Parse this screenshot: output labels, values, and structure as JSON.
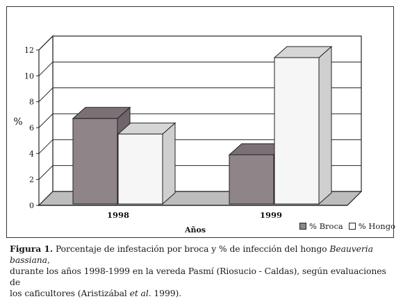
{
  "chart_data": {
    "type": "bar",
    "categories": [
      "1998",
      "1999"
    ],
    "series": [
      {
        "name": "% Broca",
        "values": [
          6.6,
          3.8
        ],
        "color": "#8f8488"
      },
      {
        "name": "% Hongo",
        "values": [
          5.4,
          11.3
        ],
        "color": "#f7f7f7"
      }
    ],
    "ylabel": "%",
    "xlabel": "Años",
    "ylim": [
      0,
      12
    ],
    "yticks": [
      "0",
      "2",
      "4",
      "6",
      "8",
      "10",
      "12"
    ],
    "grid": true,
    "three_d": true,
    "legend_position": "bottom-right"
  },
  "caption": {
    "label": "Figura 1.",
    "line1_text": "Porcentaje de infestación por broca y % de infección del hongo",
    "line1_italic": "Beauveria bassiana",
    "line1_end": ",",
    "line2": "durante los años 1998-1999 en la vereda Pasmí (Riosucio - Caldas), según evaluaciones de",
    "line3_start": "los caficultores (Aristizábal",
    "line3_italic": "et al.",
    "line3_end": "1999)."
  }
}
